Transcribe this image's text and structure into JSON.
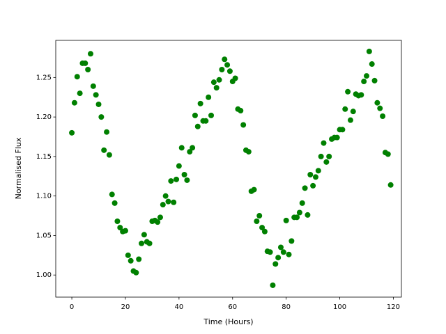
{
  "chart_data": {
    "type": "scatter",
    "x_label": "Time (Hours)",
    "y_label": "Normalised Flux",
    "xlim": [
      -6,
      123
    ],
    "ylim": [
      0.972,
      1.297
    ],
    "xticks": [
      0,
      20,
      40,
      60,
      80,
      100,
      120
    ],
    "yticks": [
      {
        "value": 1.0,
        "label": "1.00"
      },
      1.05,
      {
        "value": 1.1,
        "label": "1.10"
      },
      1.15,
      {
        "value": 1.2,
        "label": "1.20"
      },
      1.25
    ],
    "series": [
      {
        "color": "#008000",
        "x": [
          0,
          1,
          2,
          3,
          4,
          5,
          6,
          7,
          8,
          9,
          10,
          11,
          12,
          13,
          14,
          15,
          16,
          17,
          18,
          19,
          20,
          21,
          22,
          23,
          24,
          25,
          26,
          27,
          28,
          29,
          30,
          31,
          32,
          33,
          34,
          35,
          36,
          37,
          38,
          39,
          40,
          41,
          42,
          43,
          44,
          45,
          46,
          47,
          48,
          49,
          50,
          51,
          52,
          53,
          54,
          55,
          56,
          57,
          58,
          59,
          60,
          61,
          62,
          63,
          64,
          65,
          66,
          67,
          68,
          69,
          70,
          71,
          72,
          73,
          74,
          75,
          76,
          77,
          78,
          79,
          80,
          81,
          82,
          83,
          84,
          85,
          86,
          87,
          88,
          89,
          90,
          91,
          92,
          93,
          94,
          95,
          96,
          97,
          98,
          99,
          100,
          101,
          102,
          103,
          104,
          105,
          106,
          107,
          108,
          109,
          110,
          111,
          112,
          113,
          114,
          115,
          116,
          117,
          118,
          119
        ],
        "values": [
          1.18,
          1.218,
          1.251,
          1.23,
          1.268,
          1.268,
          1.26,
          1.28,
          1.239,
          1.228,
          1.216,
          1.2,
          1.158,
          1.181,
          1.152,
          1.102,
          1.091,
          1.068,
          1.06,
          1.055,
          1.056,
          1.025,
          1.018,
          1.005,
          1.003,
          1.02,
          1.04,
          1.051,
          1.042,
          1.04,
          1.068,
          1.069,
          1.067,
          1.073,
          1.089,
          1.1,
          1.093,
          1.119,
          1.092,
          1.121,
          1.138,
          1.161,
          1.127,
          1.12,
          1.156,
          1.161,
          1.202,
          1.188,
          1.217,
          1.195,
          1.195,
          1.225,
          1.202,
          1.244,
          1.237,
          1.247,
          1.26,
          1.273,
          1.266,
          1.258,
          1.245,
          1.249,
          1.21,
          1.208,
          1.19,
          1.158,
          1.156,
          1.106,
          1.108,
          1.068,
          1.075,
          1.06,
          1.055,
          1.03,
          1.029,
          0.987,
          1.014,
          1.022,
          1.035,
          1.029,
          1.069,
          1.026,
          1.043,
          1.073,
          1.073,
          1.079,
          1.091,
          1.11,
          1.076,
          1.127,
          1.113,
          1.124,
          1.132,
          1.15,
          1.167,
          1.143,
          1.15,
          1.172,
          1.174,
          1.174,
          1.184,
          1.184,
          1.21,
          1.232,
          1.196,
          1.207,
          1.229,
          1.227,
          1.228,
          1.245,
          1.252,
          1.283,
          1.267,
          1.246,
          1.218,
          1.211,
          1.201,
          1.155,
          1.153,
          1.114
        ]
      }
    ]
  }
}
